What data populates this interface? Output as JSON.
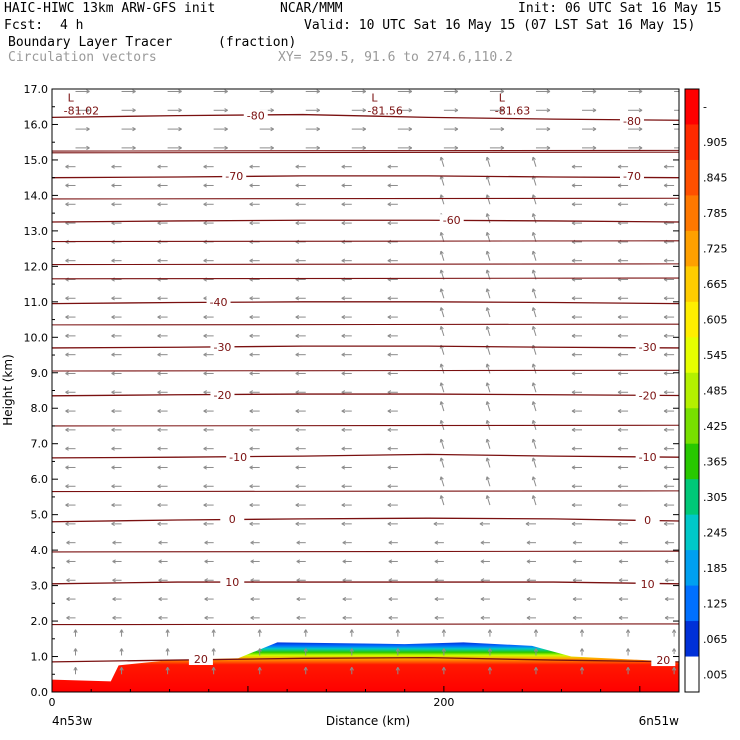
{
  "header": {
    "model": "HAIC-HIWC 13km ARW-GFS init",
    "org": "NCAR/MMM",
    "init": "Init: 06 UTC Sat 16 May 15",
    "fcst_label": "Fcst:",
    "fcst_value": "4 h",
    "valid": "Valid: 10 UTC Sat 16 May 15 (07 LST Sat 16 May 15)",
    "field": "Boundary Layer Tracer",
    "units": "(fraction)",
    "vectors": "Circulation vectors",
    "xy": "XY= 259.5, 91.6 to 274.6,110.2"
  },
  "chart_data": {
    "type": "heatmap",
    "ylabel": "Height (km)",
    "xlabel": "Distance (km)",
    "ylim": [
      0,
      17
    ],
    "xlim": [
      0,
      320
    ],
    "y_ticks": [
      "0.0",
      "1.0",
      "2.0",
      "3.0",
      "4.0",
      "5.0",
      "6.0",
      "7.0",
      "8.0",
      "9.0",
      "10.0",
      "11.0",
      "12.0",
      "13.0",
      "14.0",
      "15.0",
      "16.0",
      "17.0"
    ],
    "x_ticks": [
      {
        "v": 0,
        "label": "0"
      },
      {
        "v": 200,
        "label": "200"
      }
    ],
    "x_endpoints": {
      "left": "4n53w",
      "right": "6n51w"
    },
    "isotherms": [
      {
        "temp": 20,
        "label": "20",
        "y": [
          0.85,
          0.9,
          0.95,
          0.97,
          0.9,
          0.85
        ]
      },
      {
        "temp": 10,
        "label": "10",
        "y": [
          3.05,
          3.1,
          3.1,
          3.1,
          3.1,
          3.05
        ]
      },
      {
        "temp": 0,
        "label": "0",
        "y": [
          4.8,
          4.85,
          4.88,
          4.9,
          4.88,
          4.82
        ]
      },
      {
        "temp": -10,
        "label": "-10",
        "y": [
          6.6,
          6.62,
          6.65,
          6.7,
          6.65,
          6.62
        ]
      },
      {
        "temp": -20,
        "label": "-20",
        "y": [
          8.35,
          8.38,
          8.4,
          8.4,
          8.38,
          8.36
        ]
      },
      {
        "temp": -30,
        "label": "-30",
        "y": [
          9.7,
          9.72,
          9.75,
          9.75,
          9.72,
          9.7
        ]
      },
      {
        "temp": -40,
        "label": "-40",
        "y": [
          10.95,
          10.98,
          11.0,
          11.0,
          10.98,
          10.95
        ]
      },
      {
        "temp": -60,
        "label": "-60",
        "y": [
          13.25,
          13.28,
          13.3,
          13.3,
          13.28,
          13.25
        ]
      },
      {
        "temp": -70,
        "label": "-70",
        "y": [
          14.5,
          14.52,
          14.55,
          14.55,
          14.52,
          14.5
        ]
      },
      {
        "temp": -80,
        "label": "-80",
        "y": [
          16.2,
          16.25,
          16.28,
          16.2,
          16.15,
          16.12
        ]
      }
    ],
    "contour_labels": [
      {
        "text": "-80",
        "x": 104,
        "y": 16.25
      },
      {
        "text": "-80",
        "x": 296,
        "y": 16.1
      },
      {
        "text": "-70",
        "x": 93,
        "y": 14.55
      },
      {
        "text": "-70",
        "x": 296,
        "y": 14.55
      },
      {
        "text": "-60",
        "x": 204,
        "y": 13.3
      },
      {
        "text": "-40",
        "x": 85,
        "y": 11.0
      },
      {
        "text": "-30",
        "x": 87,
        "y": 9.72
      },
      {
        "text": "-30",
        "x": 304,
        "y": 9.72
      },
      {
        "text": "-20",
        "x": 87,
        "y": 8.38
      },
      {
        "text": "-20",
        "x": 304,
        "y": 8.36
      },
      {
        "text": "-10",
        "x": 95,
        "y": 6.62
      },
      {
        "text": "-10",
        "x": 304,
        "y": 6.62
      },
      {
        "text": "0",
        "x": 92,
        "y": 4.88
      },
      {
        "text": "0",
        "x": 304,
        "y": 4.85
      },
      {
        "text": "10",
        "x": 92,
        "y": 3.1
      },
      {
        "text": "10",
        "x": 304,
        "y": 3.05
      },
      {
        "text": "20",
        "x": 76,
        "y": 0.93
      },
      {
        "text": "20",
        "x": 312,
        "y": 0.9
      }
    ],
    "lows": [
      {
        "mark": "L",
        "value": "-81.02",
        "x": 8,
        "y": 16.65
      },
      {
        "mark": "L",
        "value": "-81.56",
        "x": 163,
        "y": 16.65
      },
      {
        "mark": "L",
        "value": "-81.63",
        "x": 228,
        "y": 16.65
      }
    ],
    "tracer_top_km": [
      {
        "x": 0,
        "y": 0.35
      },
      {
        "x": 30,
        "y": 0.3
      },
      {
        "x": 34,
        "y": 0.75
      },
      {
        "x": 60,
        "y": 0.9
      },
      {
        "x": 95,
        "y": 0.95
      },
      {
        "x": 115,
        "y": 1.4
      },
      {
        "x": 180,
        "y": 1.35
      },
      {
        "x": 210,
        "y": 1.4
      },
      {
        "x": 245,
        "y": 1.3
      },
      {
        "x": 265,
        "y": 1.0
      },
      {
        "x": 320,
        "y": 0.85
      }
    ],
    "colorbar": {
      "labels": [
        "-",
        ".905",
        ".845",
        ".785",
        ".725",
        ".665",
        ".605",
        ".545",
        ".485",
        ".425",
        ".365",
        ".305",
        ".245",
        ".185",
        ".125",
        ".065",
        ".005"
      ],
      "colors": [
        "#ff0000",
        "#ff2a00",
        "#ff5000",
        "#ff7800",
        "#ffa000",
        "#ffcc00",
        "#ffee00",
        "#e6ff00",
        "#b4f000",
        "#78e000",
        "#28c800",
        "#00c878",
        "#00c8c8",
        "#00a0f0",
        "#0070ff",
        "#0030d8",
        "#ffffff"
      ]
    }
  }
}
